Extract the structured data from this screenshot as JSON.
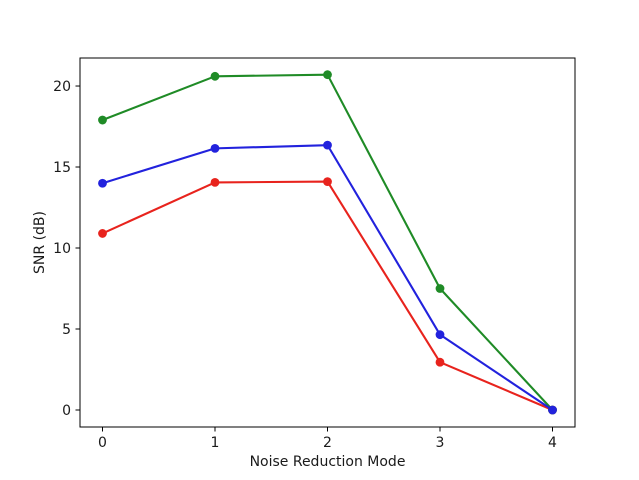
{
  "chart_data": {
    "type": "line",
    "title": "",
    "xlabel": "Noise Reduction Mode",
    "ylabel": "SNR (dB)",
    "x": [
      0,
      1,
      2,
      3,
      4
    ],
    "series": [
      {
        "name": "red",
        "color": "#e8231d",
        "marker": "circle",
        "values": [
          10.9,
          14.05,
          14.1,
          2.95,
          0.0
        ]
      },
      {
        "name": "green",
        "color": "#1f8b26",
        "marker": "circle",
        "values": [
          17.9,
          20.6,
          20.7,
          7.5,
          0.0
        ]
      },
      {
        "name": "blue",
        "color": "#2222dd",
        "marker": "circle",
        "values": [
          14.0,
          16.15,
          16.35,
          4.65,
          0.0
        ]
      }
    ],
    "x_ticks": [
      "0",
      "1",
      "2",
      "3",
      "4"
    ],
    "y_ticks": [
      "0",
      "5",
      "10",
      "15",
      "20"
    ],
    "xlim": [
      -0.2,
      4.2
    ],
    "ylim": [
      -1.05,
      21.73
    ],
    "grid": false,
    "legend_position": "none",
    "background": "#ffffff",
    "spine_color": "#000000"
  }
}
